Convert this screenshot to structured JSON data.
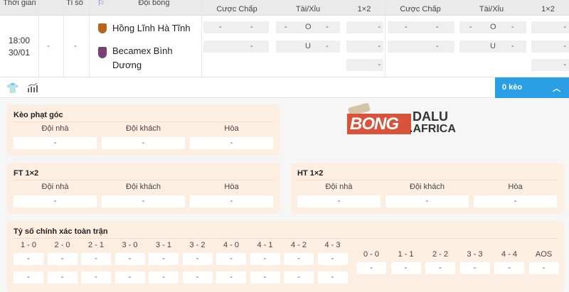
{
  "header": {
    "time": "Thời gian",
    "score": "Tỉ số",
    "teams": "Đội bóng",
    "group1": {
      "handicap": "Cược Chấp",
      "ou": "Tài/Xỉu",
      "x12": "1×2"
    },
    "group2": {
      "handicap": "Cược Chấp",
      "ou": "Tài/Xỉu",
      "x12": "1×2"
    }
  },
  "match": {
    "time": "18:00",
    "date": "30/01",
    "home_score": "-",
    "away_score": "-",
    "home": "Hồng Lĩnh Hà Tĩnh",
    "away": "Becamex Bình Dương",
    "home_color": "#b5651d",
    "away_color": "#7b3f73"
  },
  "odds": {
    "dash": "-",
    "over": "O",
    "under": "U"
  },
  "toolbar": {
    "keo_label": "0 kèo",
    "accent": "#2a9fe6"
  },
  "corner": {
    "title": "Kèo phạt góc",
    "home": "Đội nhà",
    "away": "Đội khách",
    "draw": "Hòa",
    "values": [
      "-",
      "-",
      "-"
    ]
  },
  "ft": {
    "title": "FT 1×2",
    "home": "Đội nhà",
    "away": "Đội khách",
    "draw": "Hòa",
    "values": [
      "-",
      "-",
      "-"
    ]
  },
  "ht": {
    "title": "HT 1×2",
    "home": "Đội nhà",
    "away": "Đội khách",
    "draw": "Hòa",
    "values": [
      "-",
      "-",
      "-"
    ]
  },
  "correct_score": {
    "title": "Tỷ số chính xác toàn trận",
    "left": [
      "1 - 0",
      "2 - 0",
      "2 - 1",
      "3 - 0",
      "3 - 1",
      "3 - 2",
      "4 - 0",
      "4 - 1",
      "4 - 2",
      "4 - 3"
    ],
    "right": [
      "0 - 0",
      "1 - 1",
      "2 - 2",
      "3 - 3",
      "4 - 4",
      "AOS"
    ],
    "value": "-"
  },
  "logo": {
    "text1": "BONG",
    "text2": "DALU",
    "text3": ".AFRICA"
  }
}
